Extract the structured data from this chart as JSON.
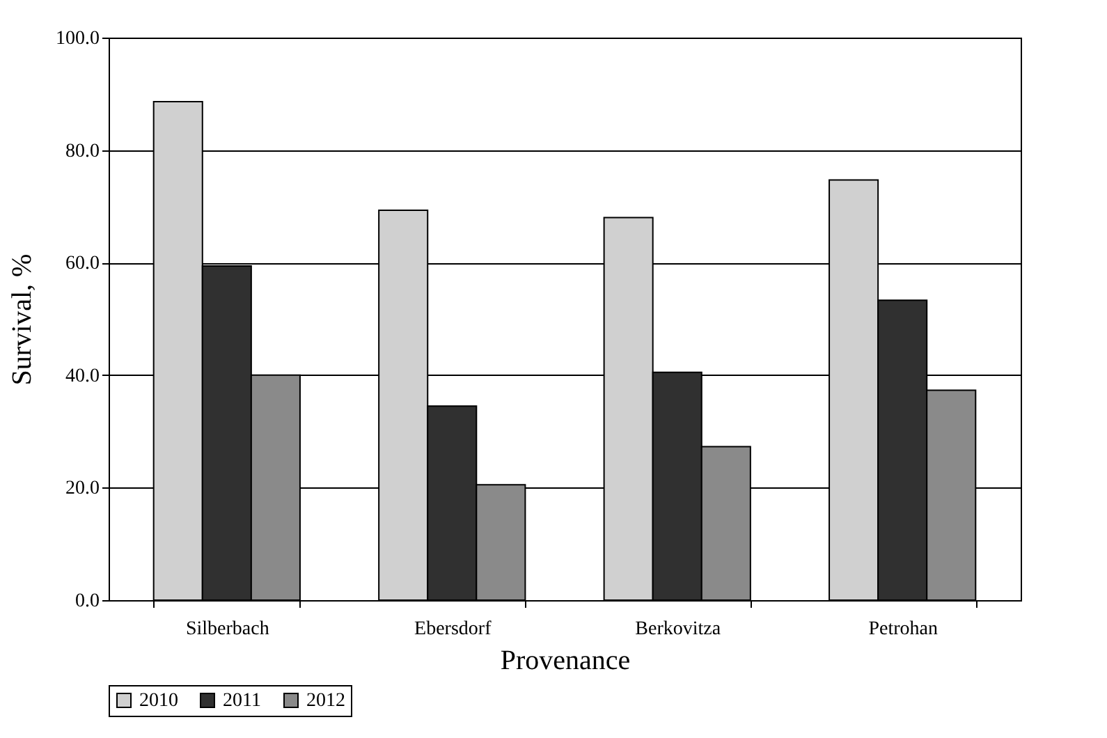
{
  "chart_data": {
    "type": "bar",
    "xlabel": "Provenance",
    "ylabel": "Survival, %",
    "categories": [
      "Silberbach",
      "Ebersdorf",
      "Berkovitza",
      "Petrohan"
    ],
    "series": [
      {
        "name": "2010",
        "color": "#d0d0d0",
        "values": [
          88.6,
          69.3,
          68.0,
          74.7
        ]
      },
      {
        "name": "2011",
        "color": "#303030",
        "values": [
          59.4,
          34.5,
          40.5,
          53.3
        ]
      },
      {
        "name": "2012",
        "color": "#8a8a8a",
        "values": [
          40.0,
          20.5,
          27.3,
          37.3
        ]
      }
    ],
    "ylim": [
      0,
      100
    ],
    "yticks": [
      {
        "value": 0,
        "label": "0.0"
      },
      {
        "value": 20,
        "label": "20.0"
      },
      {
        "value": 40,
        "label": "40.0"
      },
      {
        "value": 60,
        "label": "60.0"
      },
      {
        "value": 80,
        "label": "80.0"
      },
      {
        "value": 100,
        "label": "100.0"
      }
    ],
    "grid": "y",
    "legend": "bottom"
  }
}
